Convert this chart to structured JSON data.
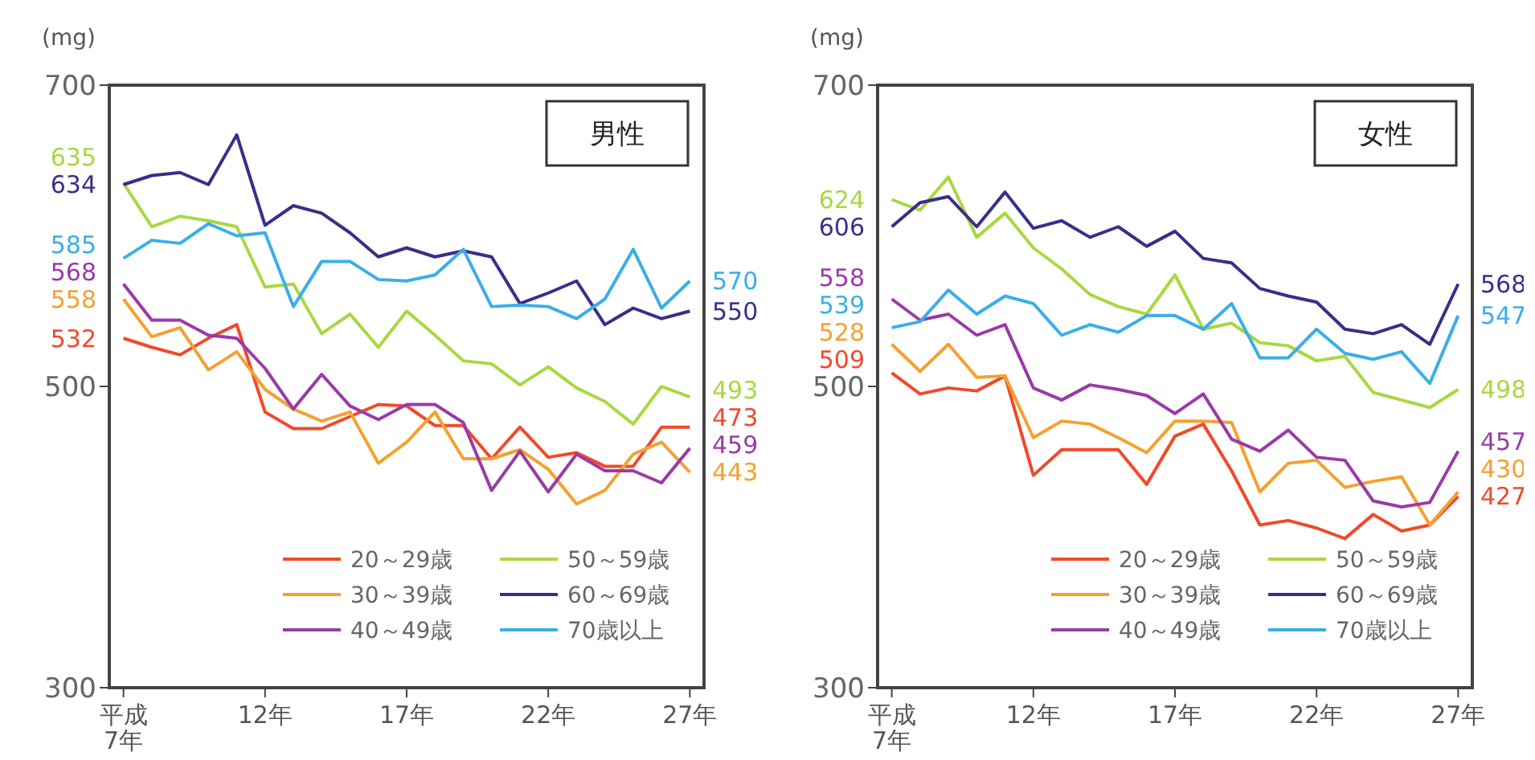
{
  "chart_data": [
    {
      "type": "line",
      "title": "男性",
      "ylabel": "(mg)",
      "x": [
        7,
        8,
        9,
        10,
        11,
        12,
        13,
        14,
        15,
        16,
        17,
        18,
        19,
        20,
        21,
        22,
        23,
        24,
        25,
        26,
        27
      ],
      "xlim": [
        6.5,
        27.5
      ],
      "xticks": [
        {
          "value": 7,
          "label": "平成\n7年"
        },
        {
          "value": 12,
          "label": "12年"
        },
        {
          "value": 17,
          "label": "17年"
        },
        {
          "value": 22,
          "label": "22年"
        },
        {
          "value": 27,
          "label": "27年"
        }
      ],
      "ylim": [
        300,
        700
      ],
      "yticks": [
        300,
        500,
        700
      ],
      "legend": "bottom right",
      "series": [
        {
          "name": "20～29歳",
          "color": "#f04a2a",
          "values": [
            532,
            526,
            521,
            532,
            541,
            483,
            472,
            472,
            480,
            488,
            487,
            474,
            474,
            452,
            473,
            453,
            456,
            447,
            447,
            473,
            473
          ],
          "value_labels": [
            "532",
            null,
            null,
            null,
            null,
            null,
            null,
            null,
            null,
            null,
            null,
            null,
            null,
            null,
            null,
            null,
            null,
            null,
            null,
            null,
            "473"
          ]
        },
        {
          "name": "30～39歳",
          "color": "#f5a030",
          "values": [
            558,
            533,
            539,
            511,
            523,
            498,
            485,
            477,
            483,
            449,
            463,
            483,
            452,
            452,
            458,
            445,
            422,
            431,
            455,
            463,
            443
          ],
          "value_labels": [
            "558",
            null,
            null,
            null,
            null,
            null,
            null,
            null,
            null,
            null,
            null,
            null,
            null,
            null,
            null,
            null,
            null,
            null,
            null,
            null,
            "443"
          ]
        },
        {
          "name": "40～49歳",
          "color": "#9a3aa8",
          "values": [
            568,
            544,
            544,
            534,
            532,
            512,
            485,
            508,
            487,
            478,
            488,
            488,
            476,
            431,
            457,
            430,
            455,
            444,
            444,
            436,
            459
          ],
          "value_labels": [
            "568",
            null,
            null,
            null,
            null,
            null,
            null,
            null,
            null,
            null,
            null,
            null,
            null,
            null,
            null,
            null,
            null,
            null,
            null,
            null,
            "459"
          ]
        },
        {
          "name": "50～59歳",
          "color": "#a8d840",
          "values": [
            635,
            606,
            613,
            610,
            606,
            566,
            568,
            535,
            548,
            526,
            550,
            534,
            517,
            515,
            501,
            513,
            499,
            490,
            475,
            500,
            493
          ],
          "value_labels": [
            "635",
            null,
            null,
            null,
            null,
            null,
            null,
            null,
            null,
            null,
            null,
            null,
            null,
            null,
            null,
            null,
            null,
            null,
            null,
            null,
            "493"
          ]
        },
        {
          "name": "60～69歳",
          "color": "#3a2e8a",
          "values": [
            634,
            640,
            642,
            634,
            667,
            607,
            620,
            615,
            602,
            586,
            592,
            586,
            590,
            586,
            555,
            562,
            570,
            541,
            552,
            545,
            550
          ],
          "value_labels": [
            "634",
            null,
            null,
            null,
            null,
            null,
            null,
            null,
            null,
            null,
            null,
            null,
            null,
            null,
            null,
            null,
            null,
            null,
            null,
            null,
            "550"
          ]
        },
        {
          "name": "70歳以上",
          "color": "#3aaee8",
          "values": [
            585,
            597,
            595,
            608,
            600,
            602,
            553,
            583,
            583,
            571,
            570,
            574,
            591,
            553,
            554,
            553,
            545,
            558,
            591,
            552,
            570
          ],
          "value_labels": [
            "585",
            null,
            null,
            null,
            null,
            null,
            null,
            null,
            null,
            null,
            null,
            null,
            null,
            null,
            null,
            null,
            null,
            null,
            null,
            null,
            "570"
          ]
        }
      ]
    },
    {
      "type": "line",
      "title": "女性",
      "ylabel": "(mg)",
      "x": [
        7,
        8,
        9,
        10,
        11,
        12,
        13,
        14,
        15,
        16,
        17,
        18,
        19,
        20,
        21,
        22,
        23,
        24,
        25,
        26,
        27
      ],
      "xlim": [
        6.5,
        27.5
      ],
      "xticks": [
        {
          "value": 7,
          "label": "平成\n7年"
        },
        {
          "value": 12,
          "label": "12年"
        },
        {
          "value": 17,
          "label": "17年"
        },
        {
          "value": 22,
          "label": "22年"
        },
        {
          "value": 27,
          "label": "27年"
        }
      ],
      "ylim": [
        300,
        700
      ],
      "yticks": [
        300,
        500,
        700
      ],
      "legend": "bottom right",
      "series": [
        {
          "name": "20～29歳",
          "color": "#f04a2a",
          "values": [
            509,
            495,
            499,
            497,
            507,
            441,
            458,
            458,
            458,
            435,
            467,
            475,
            444,
            408,
            411,
            406,
            399,
            415,
            404,
            408,
            427
          ],
          "value_labels": [
            "509",
            null,
            null,
            null,
            null,
            null,
            null,
            null,
            null,
            null,
            null,
            null,
            null,
            null,
            null,
            null,
            null,
            null,
            null,
            null,
            "427"
          ]
        },
        {
          "name": "30～39歳",
          "color": "#f5a030",
          "values": [
            528,
            510,
            528,
            506,
            507,
            466,
            477,
            475,
            466,
            456,
            477,
            477,
            476,
            430,
            449,
            451,
            433,
            437,
            440,
            408,
            430
          ],
          "value_labels": [
            "528",
            null,
            null,
            null,
            null,
            null,
            null,
            null,
            null,
            null,
            null,
            null,
            null,
            null,
            null,
            null,
            null,
            null,
            null,
            null,
            "430"
          ]
        },
        {
          "name": "40～49歳",
          "color": "#9a3aa8",
          "values": [
            558,
            544,
            548,
            534,
            541,
            499,
            491,
            501,
            498,
            494,
            482,
            495,
            465,
            457,
            471,
            453,
            451,
            424,
            420,
            423,
            457
          ],
          "value_labels": [
            "558",
            null,
            null,
            null,
            null,
            null,
            null,
            null,
            null,
            null,
            null,
            null,
            null,
            null,
            null,
            null,
            null,
            null,
            null,
            null,
            "457"
          ]
        },
        {
          "name": "50～59歳",
          "color": "#a8d840",
          "values": [
            624,
            617,
            639,
            599,
            615,
            592,
            578,
            561,
            553,
            548,
            574,
            538,
            542,
            529,
            527,
            517,
            520,
            496,
            491,
            486,
            498
          ],
          "value_labels": [
            "624",
            null,
            null,
            null,
            null,
            null,
            null,
            null,
            null,
            null,
            null,
            null,
            null,
            null,
            null,
            null,
            null,
            null,
            null,
            null,
            "498"
          ]
        },
        {
          "name": "60～69歳",
          "color": "#3a2e8a",
          "values": [
            606,
            622,
            626,
            606,
            629,
            605,
            610,
            599,
            606,
            593,
            603,
            585,
            582,
            565,
            560,
            556,
            538,
            535,
            541,
            528,
            568
          ],
          "value_labels": [
            "606",
            null,
            null,
            null,
            null,
            null,
            null,
            null,
            null,
            null,
            null,
            null,
            null,
            null,
            null,
            null,
            null,
            null,
            null,
            null,
            "568"
          ]
        },
        {
          "name": "70歳以上",
          "color": "#3aaee8",
          "values": [
            539,
            543,
            564,
            548,
            560,
            555,
            534,
            541,
            536,
            547,
            547,
            538,
            555,
            519,
            519,
            538,
            522,
            518,
            523,
            502,
            547
          ],
          "value_labels": [
            "539",
            null,
            null,
            null,
            null,
            null,
            null,
            null,
            null,
            null,
            null,
            null,
            null,
            null,
            null,
            null,
            null,
            null,
            null,
            null,
            "547"
          ]
        }
      ]
    }
  ]
}
